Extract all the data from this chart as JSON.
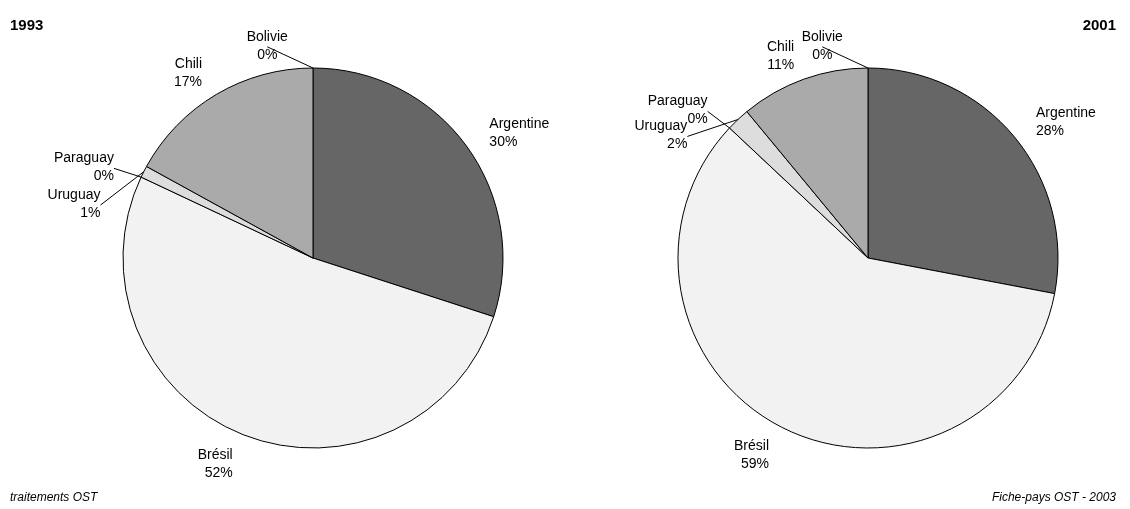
{
  "chart_data": [
    {
      "type": "pie",
      "title": "1993",
      "categories": [
        "Argentine",
        "Brésil",
        "Paraguay",
        "Uruguay",
        "Chili",
        "Bolivie"
      ],
      "values": [
        30,
        52,
        0,
        1,
        17,
        0
      ],
      "value_labels": [
        "30%",
        "52%",
        "0%",
        "1%",
        "17%",
        "0%"
      ],
      "colors": [
        "#666666",
        "#f2f2f2",
        "#444444",
        "#dddddd",
        "#aaaaaa",
        "#ffffff"
      ],
      "annotations": [
        "traitements OST"
      ]
    },
    {
      "type": "pie",
      "title": "2001",
      "categories": [
        "Argentine",
        "Brésil",
        "Paraguay",
        "Uruguay",
        "Chili",
        "Bolivie"
      ],
      "values": [
        28,
        59,
        0,
        2,
        11,
        0
      ],
      "value_labels": [
        "28%",
        "59%",
        "0%",
        "2%",
        "11%",
        "0%"
      ],
      "colors": [
        "#666666",
        "#f2f2f2",
        "#444444",
        "#dddddd",
        "#aaaaaa",
        "#ffffff"
      ],
      "annotations": [
        "Fiche-pays OST - 2003"
      ]
    }
  ]
}
